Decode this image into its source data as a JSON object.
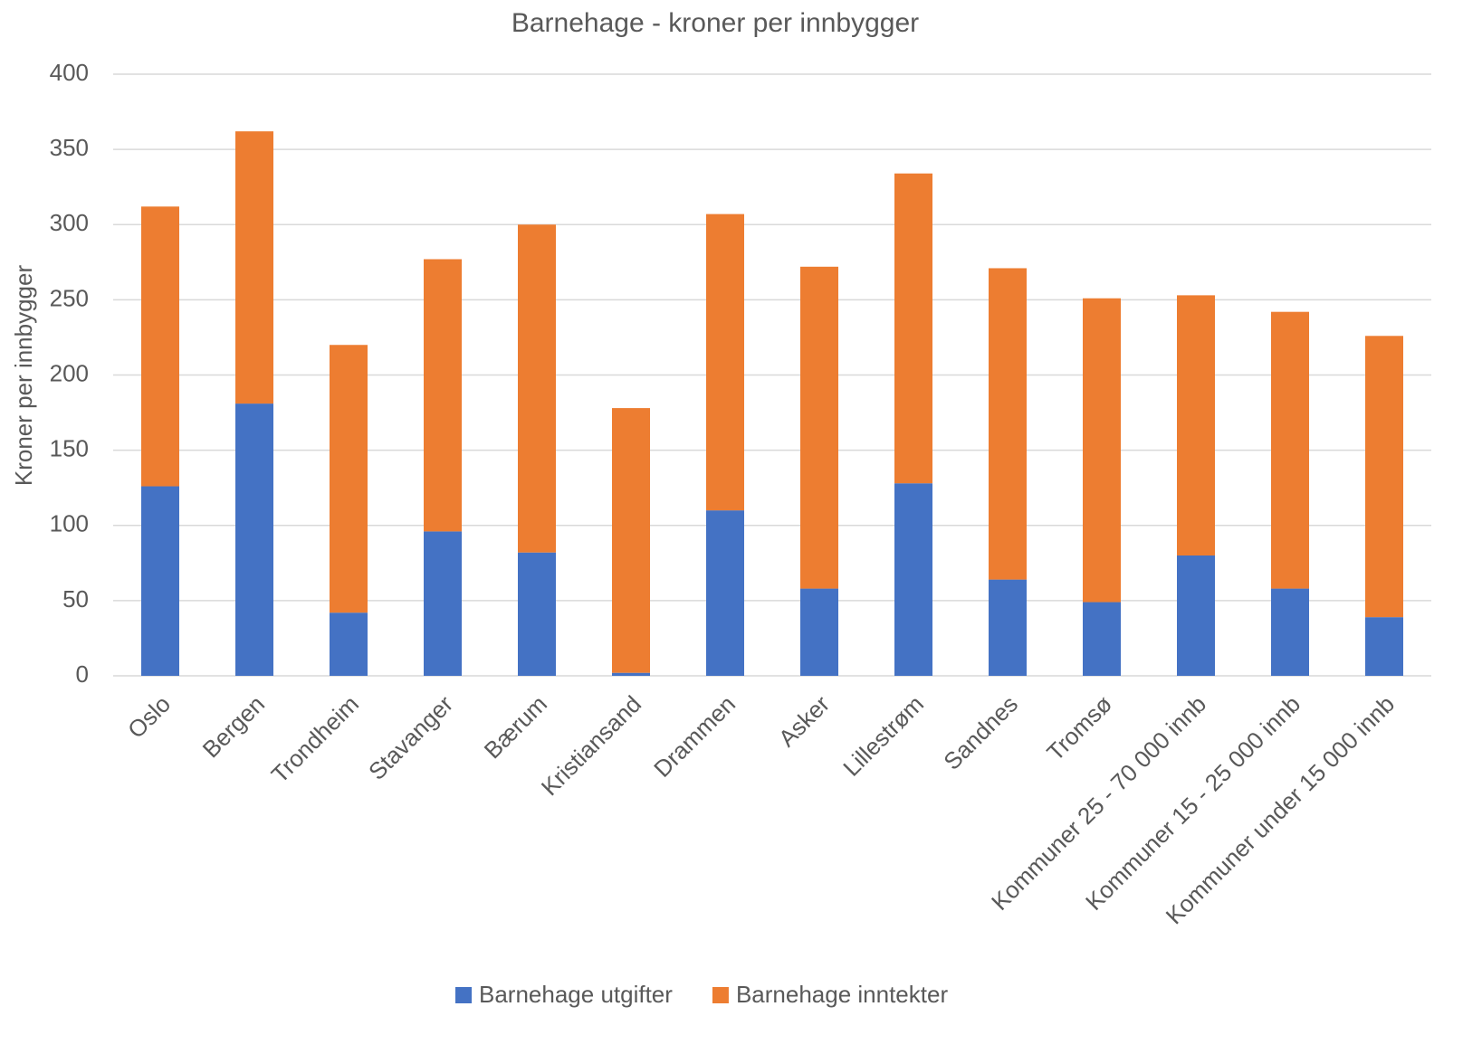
{
  "chart_data": {
    "type": "stacked_bar",
    "title": "Barnehage - kroner per innbygger",
    "y_label": "Kroner per innbygger",
    "categories": [
      "Oslo",
      "Bergen",
      "Trondheim",
      "Stavanger",
      "Bærum",
      "Kristiansand",
      "Drammen",
      "Asker",
      "Lillestrøm",
      "Sandnes",
      "Tromsø",
      "Kommuner 25 - 70 000 innb",
      "Kommuner 15 - 25 000 innb",
      "Kommuner under 15 000 innb"
    ],
    "series": [
      {
        "name": "Barnehage utgifter",
        "color": "#4472c4",
        "values": [
          126,
          181,
          42,
          96,
          82,
          2,
          110,
          58,
          128,
          64,
          49,
          80,
          58,
          39
        ]
      },
      {
        "name": "Barnehage inntekter",
        "color": "#ed7d31",
        "values": [
          186,
          181,
          178,
          181,
          218,
          176,
          197,
          214,
          206,
          207,
          202,
          173,
          184,
          187
        ]
      }
    ],
    "ylim": [
      0,
      400
    ],
    "yticks": [
      0,
      50,
      100,
      150,
      200,
      250,
      300,
      350,
      400
    ],
    "grid": true,
    "legend": "bottom"
  }
}
